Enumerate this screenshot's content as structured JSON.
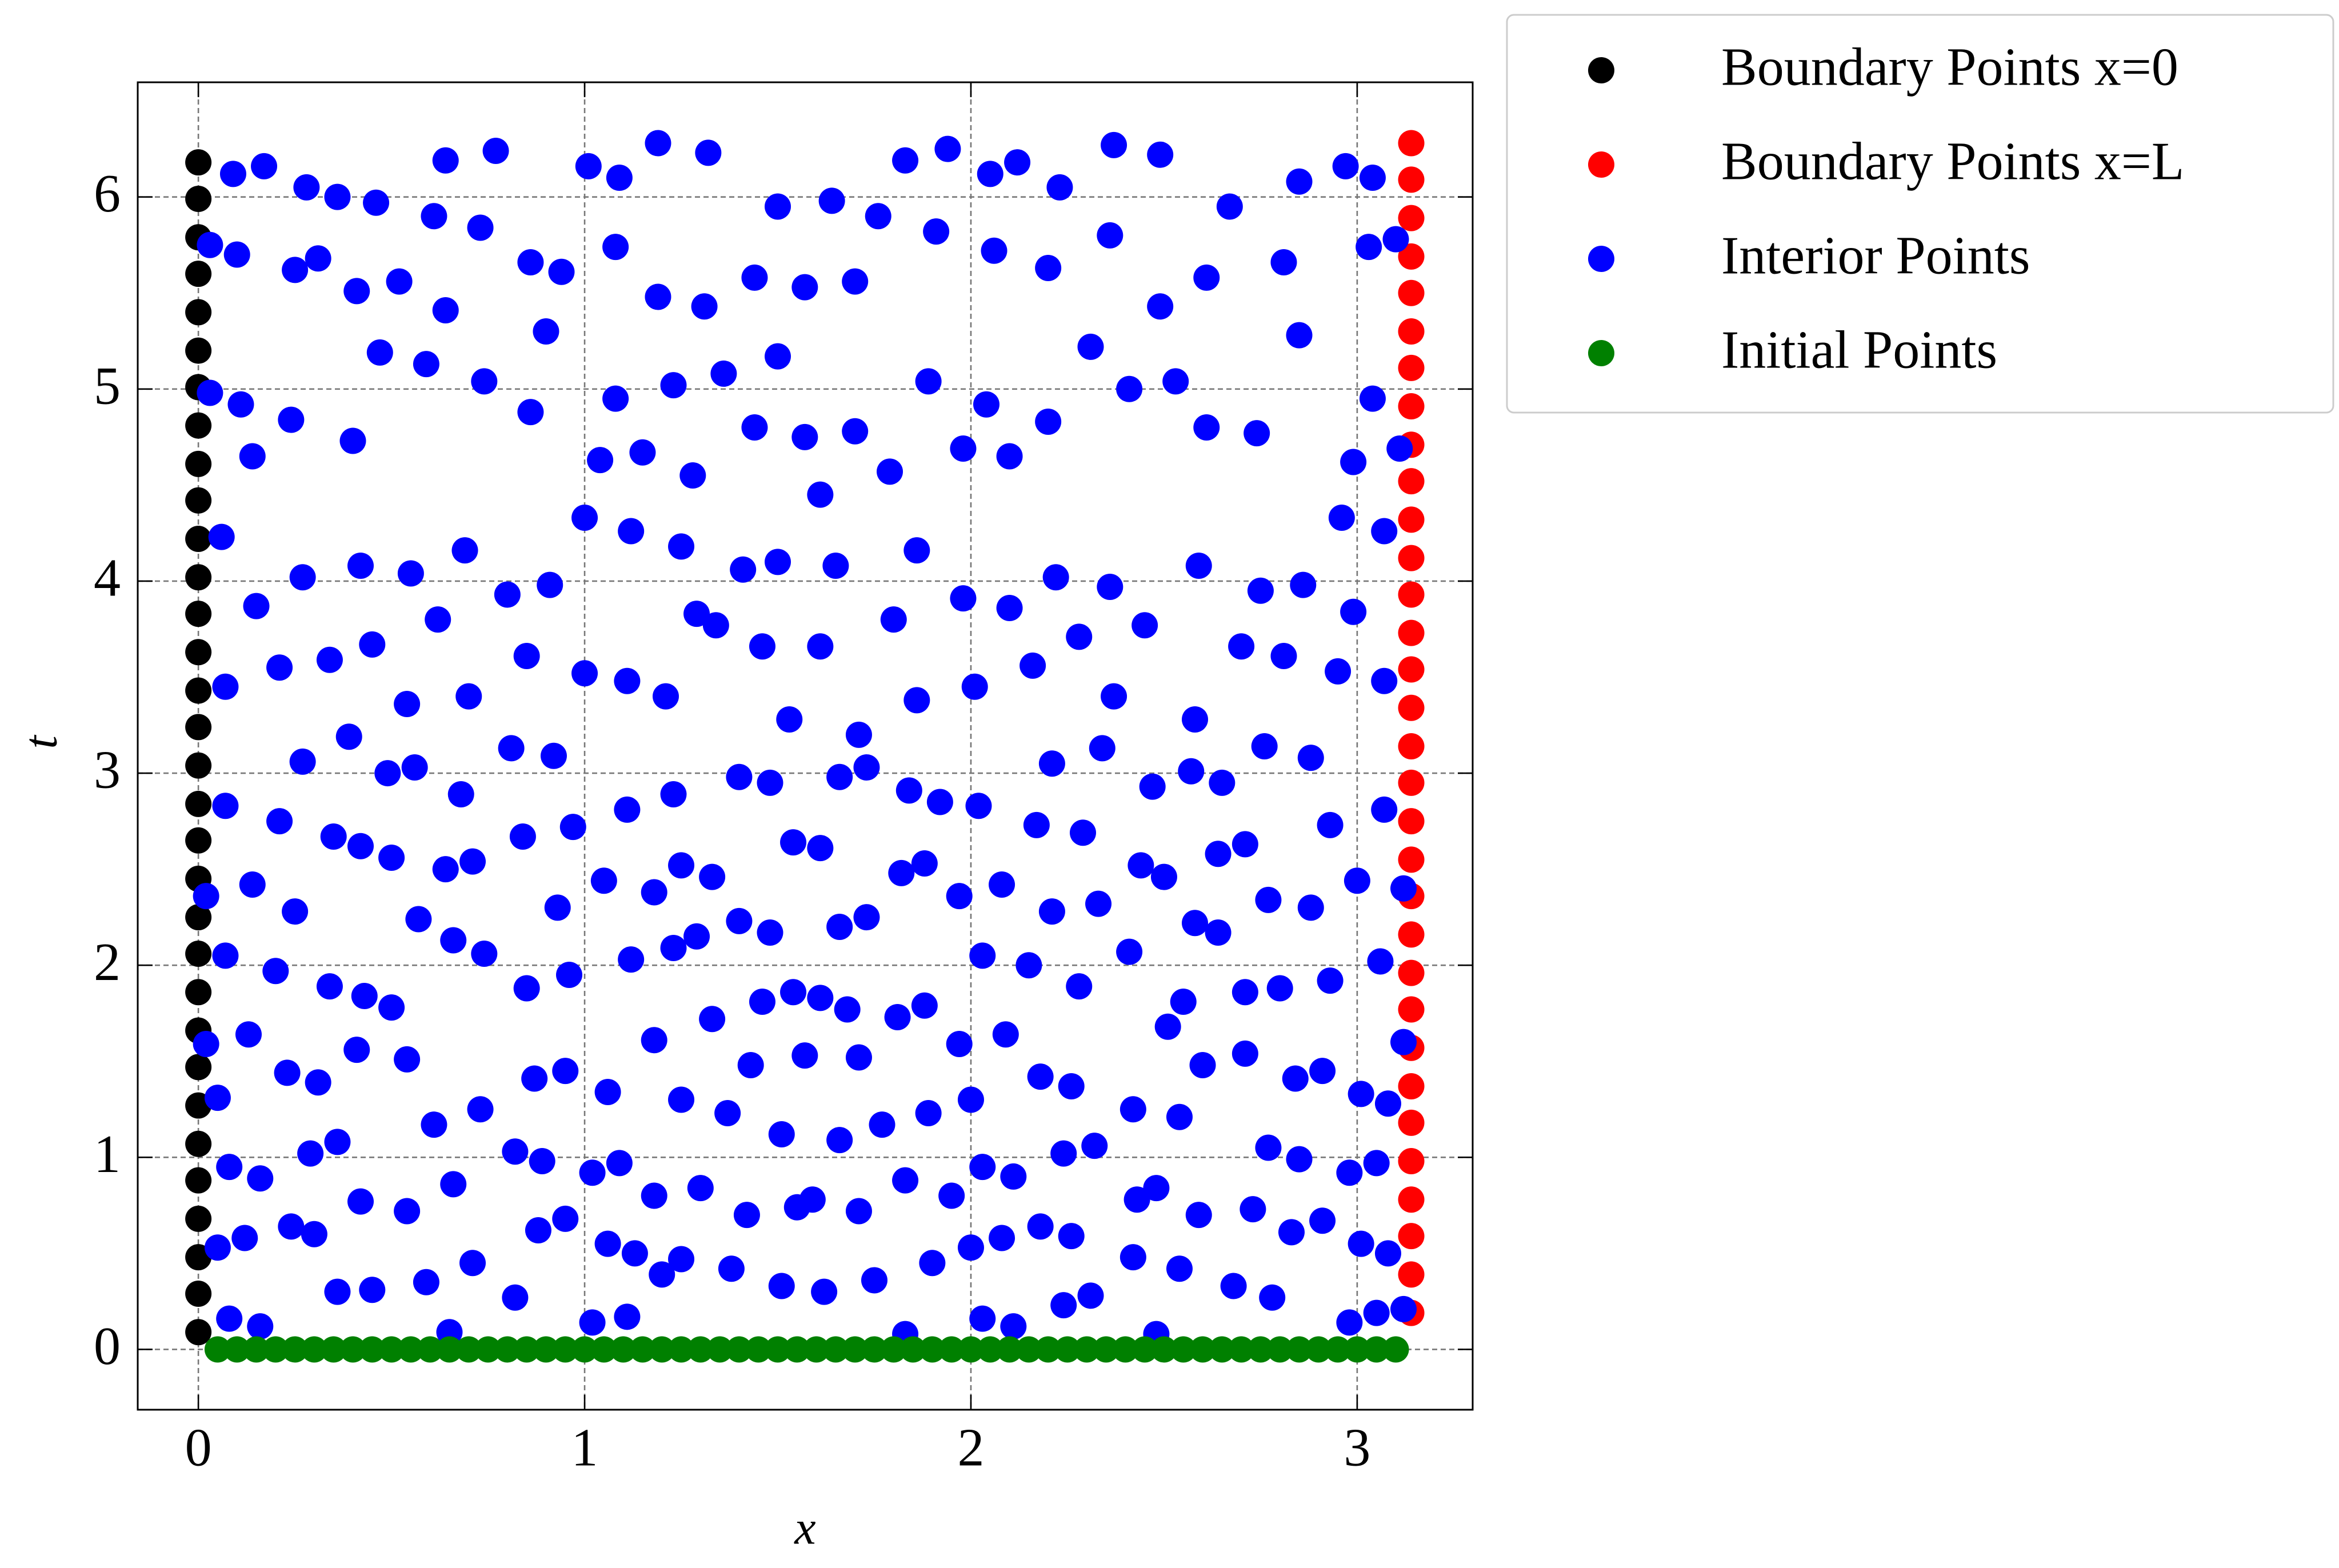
{
  "chart_data": {
    "type": "scatter",
    "xlabel": "x",
    "ylabel": "t",
    "xlim": [
      -0.157,
      3.299
    ],
    "ylim": [
      -0.314,
      6.597
    ],
    "xticks": [
      0,
      1,
      2,
      3
    ],
    "yticks": [
      0,
      1,
      2,
      3,
      4,
      5,
      6
    ],
    "grid": true,
    "legend": "outside-upper-right",
    "series": [
      {
        "name": "Boundary Points x=0",
        "color": "#000000",
        "x": [
          0,
          0,
          0,
          0,
          0,
          0,
          0,
          0,
          0,
          0,
          0,
          0,
          0,
          0,
          0,
          0,
          0,
          0,
          0,
          0,
          0,
          0,
          0,
          0,
          0,
          0,
          0,
          0,
          0,
          0,
          0,
          0
        ],
        "values": [
          0.09,
          0.29,
          0.48,
          0.68,
          0.88,
          1.07,
          1.27,
          1.47,
          1.66,
          1.86,
          2.06,
          2.25,
          2.45,
          2.65,
          2.84,
          3.04,
          3.24,
          3.43,
          3.63,
          3.83,
          4.02,
          4.22,
          4.42,
          4.61,
          4.81,
          5.01,
          5.2,
          5.4,
          5.6,
          5.79,
          5.99,
          6.18
        ]
      },
      {
        "name": "Boundary Points x=L",
        "color": "#ff0000",
        "x": [
          3.14,
          3.14,
          3.14,
          3.14,
          3.14,
          3.14,
          3.14,
          3.14,
          3.14,
          3.14,
          3.14,
          3.14,
          3.14,
          3.14,
          3.14,
          3.14,
          3.14,
          3.14,
          3.14,
          3.14,
          3.14,
          3.14,
          3.14,
          3.14,
          3.14,
          3.14,
          3.14,
          3.14,
          3.14,
          3.14,
          3.14,
          3.14
        ],
        "values": [
          0.19,
          0.39,
          0.59,
          0.78,
          0.98,
          1.18,
          1.37,
          1.57,
          1.77,
          1.96,
          2.16,
          2.36,
          2.55,
          2.75,
          2.95,
          3.14,
          3.34,
          3.54,
          3.73,
          3.93,
          4.12,
          4.32,
          4.52,
          4.71,
          4.91,
          5.11,
          5.3,
          5.5,
          5.69,
          5.89,
          6.09,
          6.28
        ]
      },
      {
        "name": "Interior Points",
        "color": "#0000ff",
        "x": [
          0.09,
          0.17,
          0.28,
          0.36,
          0.46,
          0.64,
          0.77,
          1.01,
          1.09,
          1.19,
          1.32,
          1.5,
          1.64,
          1.83,
          1.94,
          2.05,
          2.12,
          2.23,
          2.37,
          2.49,
          2.67,
          2.85,
          2.97,
          3.04,
          0.03,
          0.1,
          0.25,
          0.31,
          0.41,
          0.52,
          0.61,
          0.73,
          0.86,
          0.94,
          1.08,
          1.19,
          1.31,
          1.44,
          1.57,
          1.7,
          1.76,
          1.91,
          2.06,
          2.2,
          2.36,
          2.49,
          2.61,
          2.81,
          3.03,
          3.1,
          0.03,
          0.11,
          0.14,
          0.24,
          0.4,
          0.47,
          0.59,
          0.64,
          0.74,
          0.86,
          0.9,
          1.04,
          1.08,
          1.15,
          1.23,
          1.28,
          1.36,
          1.44,
          1.5,
          1.57,
          1.61,
          1.7,
          1.79,
          1.89,
          1.98,
          2.04,
          2.1,
          2.2,
          2.31,
          2.41,
          2.53,
          2.61,
          2.74,
          2.85,
          2.99,
          3.04,
          3.11,
          0.06,
          0.15,
          0.27,
          0.42,
          0.55,
          0.62,
          0.69,
          0.8,
          0.91,
          1.0,
          1.12,
          1.25,
          1.34,
          1.41,
          1.5,
          1.65,
          1.8,
          1.86,
          1.98,
          2.1,
          2.22,
          2.36,
          2.45,
          2.59,
          2.75,
          2.86,
          2.96,
          2.99,
          3.07,
          0.07,
          0.21,
          0.34,
          0.45,
          0.54,
          0.7,
          0.85,
          1.0,
          1.11,
          1.21,
          1.29,
          1.46,
          1.53,
          1.61,
          1.71,
          1.86,
          2.01,
          2.16,
          2.28,
          2.37,
          2.58,
          2.7,
          2.81,
          2.95,
          3.07,
          0.07,
          0.21,
          0.27,
          0.39,
          0.49,
          0.56,
          0.68,
          0.81,
          0.92,
          0.97,
          1.11,
          1.23,
          1.4,
          1.48,
          1.66,
          1.73,
          1.84,
          1.92,
          2.02,
          2.17,
          2.21,
          2.34,
          2.47,
          2.57,
          2.65,
          2.76,
          2.88,
          2.93,
          3.07,
          0.02,
          0.14,
          0.25,
          0.35,
          0.42,
          0.5,
          0.57,
          0.64,
          0.71,
          0.84,
          0.93,
          1.05,
          1.18,
          1.25,
          1.33,
          1.4,
          1.48,
          1.54,
          1.61,
          1.66,
          1.73,
          1.82,
          1.88,
          1.97,
          2.08,
          2.21,
          2.29,
          2.33,
          2.44,
          2.5,
          2.58,
          2.64,
          2.71,
          2.77,
          2.88,
          3.0,
          3.12,
          0.07,
          0.2,
          0.34,
          0.43,
          0.5,
          0.66,
          0.74,
          0.85,
          0.96,
          1.12,
          1.23,
          1.29,
          1.46,
          1.54,
          1.61,
          1.68,
          1.81,
          1.88,
          2.03,
          2.15,
          2.28,
          2.41,
          2.55,
          2.64,
          2.71,
          2.8,
          2.93,
          3.06,
          0.02,
          0.05,
          0.13,
          0.23,
          0.31,
          0.41,
          0.54,
          0.61,
          0.73,
          0.87,
          0.95,
          1.06,
          1.18,
          1.25,
          1.33,
          1.37,
          1.43,
          1.51,
          1.57,
          1.66,
          1.71,
          1.77,
          1.89,
          1.97,
          2.0,
          2.09,
          2.18,
          2.26,
          2.42,
          2.51,
          2.54,
          2.6,
          2.71,
          2.84,
          2.91,
          3.01,
          3.08,
          3.12,
          0.08,
          0.16,
          0.29,
          0.36,
          0.42,
          0.54,
          0.66,
          0.82,
          0.89,
          1.02,
          1.09,
          1.18,
          1.3,
          1.42,
          1.55,
          1.59,
          1.71,
          1.83,
          1.95,
          2.03,
          2.11,
          2.24,
          2.32,
          2.43,
          2.48,
          2.59,
          2.73,
          2.77,
          2.85,
          2.98,
          3.05,
          0.05,
          0.12,
          0.24,
          0.3,
          0.36,
          0.45,
          0.59,
          0.71,
          0.82,
          0.88,
          0.95,
          1.06,
          1.13,
          1.2,
          1.25,
          1.38,
          1.51,
          1.62,
          1.75,
          1.9,
          2.0,
          2.08,
          2.18,
          2.26,
          2.24,
          2.31,
          2.42,
          2.54,
          2.68,
          2.78,
          2.83,
          2.91,
          3.01,
          3.08,
          3.12,
          0.08,
          0.16,
          0.65,
          1.02,
          1.11,
          1.83,
          2.03,
          2.11,
          2.48,
          2.98,
          3.05
        ],
        "values": [
          6.12,
          6.16,
          6.05,
          6.0,
          5.97,
          6.19,
          6.24,
          6.16,
          6.1,
          6.28,
          6.23,
          5.95,
          5.98,
          6.19,
          6.25,
          6.12,
          6.18,
          6.05,
          6.27,
          6.22,
          5.95,
          6.08,
          6.16,
          6.1,
          5.75,
          5.7,
          5.62,
          5.68,
          5.51,
          5.56,
          5.9,
          5.84,
          5.66,
          5.61,
          5.74,
          5.48,
          5.43,
          5.58,
          5.53,
          5.56,
          5.9,
          5.82,
          5.72,
          5.63,
          5.8,
          5.43,
          5.58,
          5.66,
          5.74,
          5.78,
          4.98,
          4.92,
          4.65,
          4.84,
          4.73,
          5.19,
          5.13,
          5.41,
          5.04,
          4.88,
          5.3,
          4.63,
          4.95,
          4.67,
          5.02,
          4.55,
          5.08,
          4.8,
          5.17,
          4.75,
          4.45,
          4.78,
          4.57,
          5.04,
          4.69,
          4.92,
          4.65,
          4.83,
          5.22,
          5.0,
          5.04,
          4.8,
          4.77,
          5.28,
          4.62,
          4.95,
          4.69,
          4.23,
          3.87,
          4.02,
          4.08,
          4.04,
          3.8,
          4.16,
          3.93,
          3.98,
          4.33,
          4.26,
          4.18,
          3.77,
          4.06,
          4.1,
          4.08,
          3.8,
          4.16,
          3.91,
          3.86,
          4.02,
          3.97,
          3.77,
          4.08,
          3.95,
          3.98,
          4.33,
          3.84,
          4.26,
          3.45,
          3.55,
          3.59,
          3.67,
          3.36,
          3.4,
          3.61,
          3.52,
          3.48,
          3.4,
          3.83,
          3.66,
          3.28,
          3.66,
          3.2,
          3.38,
          3.45,
          3.56,
          3.71,
          3.4,
          3.28,
          3.66,
          3.61,
          3.53,
          3.48,
          2.83,
          2.75,
          3.06,
          3.19,
          3.0,
          3.03,
          2.89,
          3.13,
          3.09,
          2.72,
          2.81,
          2.89,
          2.98,
          2.95,
          2.98,
          3.03,
          2.91,
          2.85,
          2.83,
          2.73,
          3.05,
          3.13,
          2.93,
          3.01,
          2.95,
          3.14,
          3.08,
          2.73,
          2.81,
          2.36,
          2.42,
          2.28,
          2.67,
          2.62,
          2.56,
          2.24,
          2.5,
          2.54,
          2.67,
          2.3,
          2.44,
          2.38,
          2.52,
          2.46,
          2.23,
          2.17,
          2.64,
          2.61,
          2.2,
          2.25,
          2.48,
          2.53,
          2.36,
          2.42,
          2.28,
          2.69,
          2.32,
          2.52,
          2.46,
          2.22,
          2.58,
          2.63,
          2.34,
          2.3,
          2.44,
          2.4,
          2.05,
          1.97,
          1.89,
          1.84,
          1.78,
          2.13,
          2.06,
          1.88,
          1.95,
          2.03,
          2.09,
          2.15,
          1.81,
          1.86,
          1.83,
          1.77,
          1.73,
          1.79,
          2.05,
          2.0,
          1.89,
          2.07,
          1.81,
          2.17,
          1.86,
          1.88,
          1.92,
          2.02,
          1.59,
          1.31,
          1.64,
          1.44,
          1.39,
          1.56,
          1.51,
          1.17,
          1.25,
          1.41,
          1.45,
          1.34,
          1.61,
          1.3,
          1.72,
          1.23,
          1.48,
          1.12,
          1.53,
          1.09,
          1.52,
          1.17,
          1.23,
          1.59,
          1.3,
          1.64,
          1.42,
          1.37,
          1.25,
          1.68,
          1.21,
          1.48,
          1.54,
          1.41,
          1.45,
          1.33,
          1.28,
          1.6,
          0.95,
          0.89,
          1.02,
          1.08,
          0.77,
          0.72,
          0.86,
          1.03,
          0.98,
          0.92,
          0.97,
          0.8,
          0.84,
          0.7,
          0.74,
          0.78,
          0.72,
          0.88,
          0.8,
          0.95,
          0.9,
          1.02,
          1.06,
          0.78,
          0.84,
          0.7,
          0.73,
          1.05,
          0.99,
          0.92,
          0.97,
          0.53,
          0.58,
          0.64,
          0.6,
          0.3,
          0.31,
          0.35,
          0.45,
          0.27,
          0.62,
          0.68,
          0.55,
          0.5,
          0.39,
          0.47,
          0.42,
          0.33,
          0.3,
          0.36,
          0.45,
          0.53,
          0.58,
          0.64,
          0.59,
          0.23,
          0.28,
          0.48,
          0.42,
          0.33,
          0.27,
          0.61,
          0.67,
          0.55,
          0.5,
          0.21,
          0.16,
          0.12,
          0.09,
          0.14,
          0.17,
          0.08,
          0.16,
          0.12,
          0.08,
          0.14,
          0.19
        ]
      },
      {
        "name": "Initial Points",
        "color": "#008000",
        "x": [
          0.05,
          0.1,
          0.15,
          0.2,
          0.25,
          0.3,
          0.35,
          0.4,
          0.45,
          0.5,
          0.55,
          0.6,
          0.65,
          0.7,
          0.75,
          0.8,
          0.85,
          0.9,
          0.95,
          1.0,
          1.05,
          1.1,
          1.15,
          1.2,
          1.25,
          1.3,
          1.35,
          1.4,
          1.45,
          1.5,
          1.55,
          1.6,
          1.65,
          1.7,
          1.75,
          1.8,
          1.85,
          1.9,
          1.95,
          2.0,
          2.05,
          2.1,
          2.15,
          2.2,
          2.25,
          2.3,
          2.35,
          2.4,
          2.45,
          2.5,
          2.55,
          2.6,
          2.65,
          2.7,
          2.75,
          2.8,
          2.85,
          2.9,
          2.95,
          3.0,
          3.05,
          3.1
        ],
        "values": [
          0,
          0,
          0,
          0,
          0,
          0,
          0,
          0,
          0,
          0,
          0,
          0,
          0,
          0,
          0,
          0,
          0,
          0,
          0,
          0,
          0,
          0,
          0,
          0,
          0,
          0,
          0,
          0,
          0,
          0,
          0,
          0,
          0,
          0,
          0,
          0,
          0,
          0,
          0,
          0,
          0,
          0,
          0,
          0,
          0,
          0,
          0,
          0,
          0,
          0,
          0,
          0,
          0,
          0,
          0,
          0,
          0,
          0,
          0,
          0,
          0,
          0
        ]
      }
    ]
  }
}
